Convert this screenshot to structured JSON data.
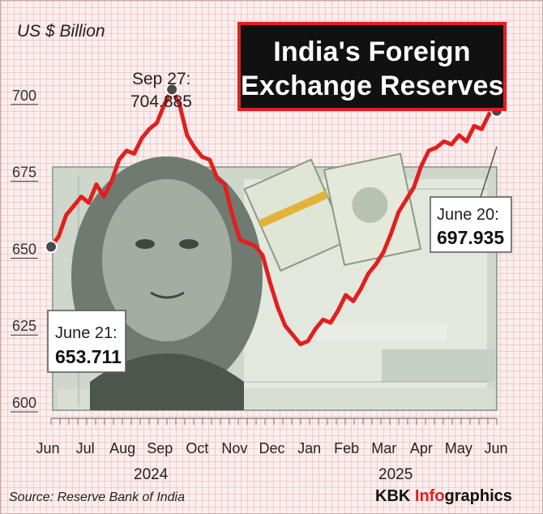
{
  "unit_label": "US $ Billion",
  "title": {
    "line1": "India's Foreign",
    "line2": "Exchange Reserves"
  },
  "years": {
    "left": "2024",
    "right": "2025"
  },
  "source": "Source: Reserve Bank of India",
  "brand": {
    "bold": "KBK ",
    "accent": "Info",
    "rest": "graphics"
  },
  "chart_data": {
    "type": "line",
    "ylabel": "US $ Billion",
    "ylim": [
      600,
      710
    ],
    "yticks": [
      600,
      625,
      650,
      675,
      700
    ],
    "month_ticks": [
      "Jun",
      "Jul",
      "Aug",
      "Sep",
      "Oct",
      "Nov",
      "Dec",
      "Jan",
      "Feb",
      "Mar",
      "Apr",
      "May",
      "Jun"
    ],
    "grid": true,
    "series": [
      {
        "color": "#e21f1f",
        "values": [
          653.711,
          657,
          664,
          667,
          670,
          668,
          674,
          670,
          675,
          682,
          685,
          684,
          689,
          692,
          694,
          700,
          704.885,
          700,
          690,
          686,
          683,
          682,
          676,
          674,
          664,
          656,
          655,
          654,
          651,
          642,
          634,
          628,
          625,
          622,
          623,
          627,
          630,
          629,
          633,
          638,
          636,
          640,
          645,
          648,
          652,
          658,
          665,
          669,
          673,
          680,
          685,
          686,
          688,
          687,
          690,
          688,
          693,
          692,
          697,
          697.935
        ]
      }
    ],
    "annotations": [
      {
        "label": "Sep 27:",
        "value": "704.885"
      },
      {
        "label": "June 21:",
        "value": "653.711"
      },
      {
        "label": "June 20:",
        "value": "697.935"
      }
    ]
  }
}
